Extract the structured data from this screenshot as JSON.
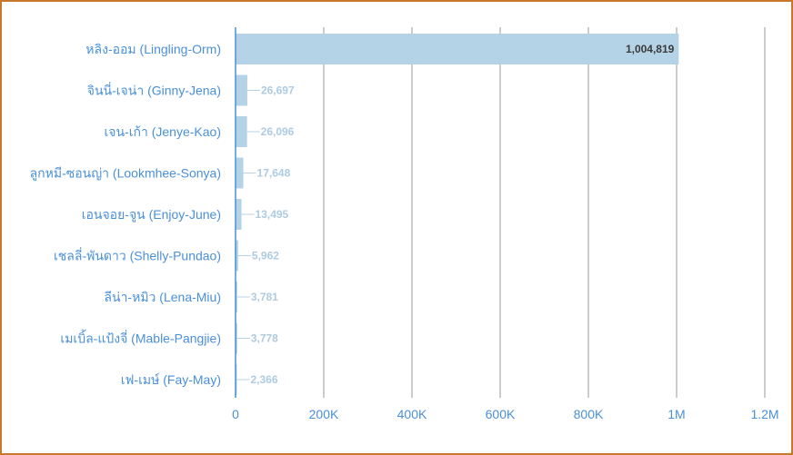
{
  "chart_data": {
    "type": "bar",
    "orientation": "horizontal",
    "categories": [
      "หลิง-ออม (Lingling-Orm)",
      "จินนี่-เจน่า (Ginny-Jena)",
      "เจน-เก้า (Jenye-Kao)",
      "ลูกหมี-ซอนญ่า (Lookmhee-Sonya)",
      "เอนจอย-จูน (Enjoy-June)",
      "เชลลี่-พันดาว (Shelly-Pundao)",
      "ลีน่า-หมิว (Lena-Miu)",
      "เมเบิ้ล-แป้งจี่ (Mable-Pangjie)",
      "เฟ-เมษ์ (Fay-May)"
    ],
    "values": [
      1004819,
      26697,
      26096,
      17648,
      13495,
      5962,
      3781,
      3778,
      2366
    ],
    "value_labels": [
      "1,004,819",
      "26,697",
      "26,096",
      "17,648",
      "13,495",
      "5,962",
      "3,781",
      "3,778",
      "2,366"
    ],
    "xlim": [
      0,
      1200000
    ],
    "x_ticks": [
      0,
      200000,
      400000,
      600000,
      800000,
      1000000,
      1200000
    ],
    "x_tick_labels": [
      "0",
      "200K",
      "400K",
      "600K",
      "800K",
      "1M",
      "1.2M"
    ],
    "grid": true,
    "colors": {
      "bar": "#b4d3e6",
      "axis": "#4a90d9",
      "grid": "#9a9a9a",
      "border": "#c8782a"
    }
  }
}
